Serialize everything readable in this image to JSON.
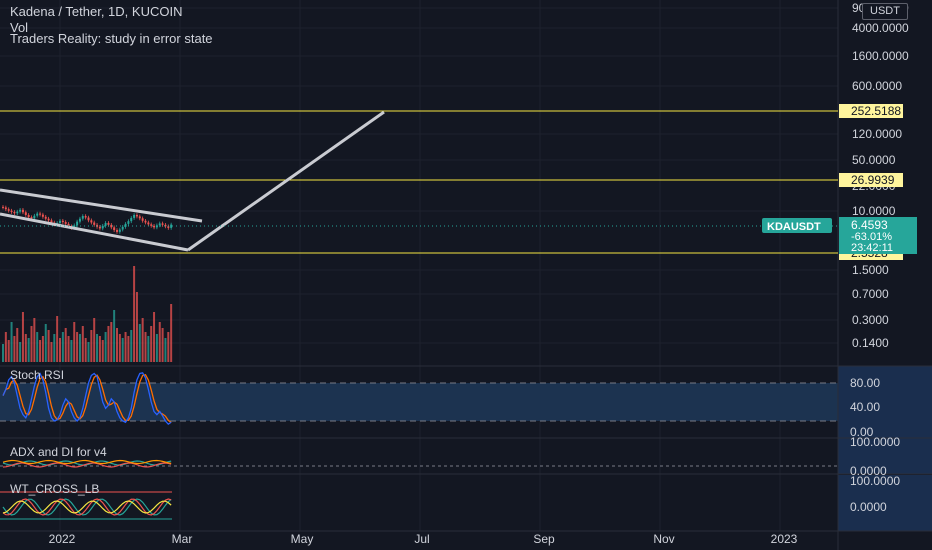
{
  "header": {
    "symbol": "Kadena / Tether, 1D, KUCOIN",
    "vol": "Vol",
    "study_error": "Traders Reality: study in error state",
    "currency": "USDT"
  },
  "price_axis_labels": [
    "9000.0000",
    "4000.0000",
    "1600.0000",
    "600.0000",
    "120.0000",
    "50.0000",
    "22.0000",
    "10.0000",
    "1.5000",
    "0.7000",
    "0.3000",
    "0.1400"
  ],
  "time_axis_labels": [
    "2022",
    "Mar",
    "May",
    "Jul",
    "Sep",
    "Nov",
    "2023"
  ],
  "levels": [
    {
      "value": 252.5188,
      "label": "252.5188"
    },
    {
      "value": 26.9939,
      "label": "26.9939"
    },
    {
      "value": 2.5528,
      "label": "2.5528"
    }
  ],
  "last_price": {
    "ticker": "KDAUSDT",
    "price": "6.4593",
    "change": "-63.01%",
    "countdown": "23:42:11"
  },
  "panes": {
    "stoch_rsi": {
      "title": "Stoch RSI",
      "axis": [
        "80.00",
        "40.00",
        "0.00"
      ],
      "upper_band": 80,
      "lower_band": 20
    },
    "adx": {
      "title": "ADX and DI for v4",
      "axis": [
        "100.0000",
        "0.0000"
      ]
    },
    "wt_cross": {
      "title": "WT_CROSS_LB",
      "axis": [
        "100.0000",
        "0.0000"
      ]
    }
  },
  "colors": {
    "background": "#131722",
    "level_line": "#f5e642",
    "level_label_bg": "#fff59d",
    "projection": "#c9cbd1",
    "up": "#26a69a",
    "down": "#ef5350",
    "price_badge": "#26a69a",
    "stoch_k": "#2962ff",
    "stoch_d": "#ff6d00",
    "stoch_fill": "#1c3350"
  },
  "chart_data": {
    "type": "candlestick",
    "title": "Kadena / Tether, 1D, KUCOIN",
    "scale": "log",
    "x_range": [
      "2022-01-01",
      "2023-01-31"
    ],
    "close_series": [
      11.2,
      10.6,
      10.1,
      9.7,
      9.3,
      9.8,
      10.4,
      9.6,
      8.8,
      8.2,
      7.9,
      8.6,
      9.2,
      8.9,
      8.3,
      7.8,
      7.4,
      6.9,
      6.5,
      6.8,
      7.3,
      7.0,
      6.6,
      6.1,
      5.8,
      6.3,
      7.1,
      7.8,
      8.5,
      8.1,
      7.4,
      6.9,
      6.4,
      6.0,
      5.7,
      6.2,
      6.8,
      6.4,
      5.9,
      5.4,
      5.1,
      5.5,
      6.0,
      6.6,
      7.2,
      8.0,
      8.8,
      8.4,
      7.9,
      7.3,
      6.9,
      6.5,
      6.2,
      5.9,
      6.3,
      6.7,
      6.4,
      6.1,
      5.8,
      6.4593
    ],
    "annotations": [
      {
        "type": "descending_channel"
      },
      {
        "type": "projection_line",
        "to": 252.5188
      }
    ]
  }
}
